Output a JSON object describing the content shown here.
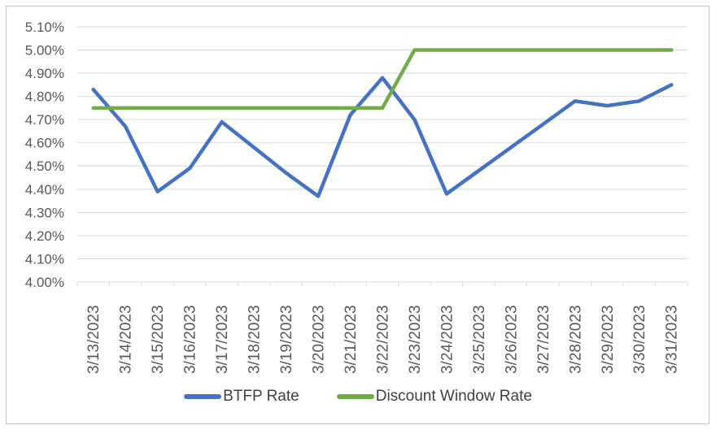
{
  "chart_data": {
    "type": "line",
    "title": "",
    "categories": [
      "3/13/2023",
      "3/14/2023",
      "3/15/2023",
      "3/16/2023",
      "3/17/2023",
      "3/18/2023",
      "3/19/2023",
      "3/20/2023",
      "3/21/2023",
      "3/22/2023",
      "3/23/2023",
      "3/24/2023",
      "3/25/2023",
      "3/26/2023",
      "3/27/2023",
      "3/28/2023",
      "3/29/2023",
      "3/30/2023",
      "3/31/2023"
    ],
    "series": [
      {
        "name": "BTFP Rate",
        "color": "#4472C4",
        "values": [
          4.83,
          4.67,
          4.39,
          4.49,
          4.69,
          4.58,
          4.47,
          4.37,
          4.72,
          4.88,
          4.7,
          4.38,
          4.48,
          4.58,
          4.68,
          4.78,
          4.76,
          4.78,
          4.85
        ]
      },
      {
        "name": "Discount Window Rate",
        "color": "#70AD47",
        "values": [
          4.75,
          4.75,
          4.75,
          4.75,
          4.75,
          4.75,
          4.75,
          4.75,
          4.75,
          4.75,
          5.0,
          5.0,
          5.0,
          5.0,
          5.0,
          5.0,
          5.0,
          5.0,
          5.0
        ]
      }
    ],
    "y_axis": {
      "min": 4.0,
      "max": 5.1,
      "step": 0.1,
      "tick_labels": [
        "4.00%",
        "4.10%",
        "4.20%",
        "4.30%",
        "4.40%",
        "4.50%",
        "4.60%",
        "4.70%",
        "4.80%",
        "4.90%",
        "5.00%",
        "5.10%"
      ]
    },
    "x_axis": {
      "label_rotation_degrees": -90
    },
    "grid": true,
    "legend_position": "bottom",
    "style": {
      "gridline_color": "#D9D9D9",
      "axis_text_color": "#595959",
      "legend_text_color": "#404040",
      "frame_border_color": "#C8C8C8",
      "background_color": "#FFFFFF"
    }
  }
}
